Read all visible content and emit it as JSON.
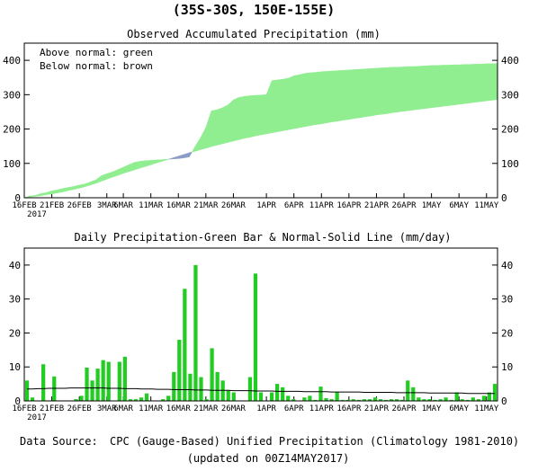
{
  "header": {
    "title": "(35S-30S, 150E-155E)"
  },
  "footer": {
    "source_label": "Data Source:",
    "source_text": "CPC (Gauge-Based) Unified Precipitation (Climatology 1981-2010)",
    "updated": "(updated on 00Z14MAY2017)"
  },
  "colors": {
    "above": "#90ee90",
    "below": "#8c9cc7",
    "bar": "#22cc22",
    "source_label": "#5a6ab5"
  },
  "chart_data": [
    {
      "type": "area",
      "title": "Observed Accumulated Precipitation (mm)",
      "legend": [
        "Above normal: green",
        "Below normal: brown"
      ],
      "legend_placement": "top-left",
      "ylim": [
        0,
        450
      ],
      "yticks": [
        0,
        100,
        200,
        300,
        400
      ],
      "xticks": [
        "16FEB",
        "21FEB",
        "26FEB",
        "3MAR",
        "6MAR",
        "11MAR",
        "16MAR",
        "21MAR",
        "26MAR",
        "1APR",
        "6APR",
        "11APR",
        "16APR",
        "21APR",
        "26APR",
        "1MAY",
        "6MAY",
        "11MAY"
      ],
      "xtick_year": "2017",
      "x_start": "2017-02-16",
      "x_end": "2017-05-13",
      "grid": false,
      "series": [
        {
          "name": "Observed",
          "values": [
            0,
            5,
            7,
            12,
            15,
            20,
            23,
            27,
            30,
            33,
            37,
            40,
            46,
            52,
            64,
            70,
            75,
            82,
            89,
            96,
            103,
            106,
            108,
            109,
            110,
            111,
            112,
            113,
            114,
            116,
            119,
            148,
            174,
            205,
            253,
            256,
            262,
            270,
            285,
            292,
            295,
            297,
            298,
            299,
            300,
            341,
            343,
            345,
            348,
            355,
            358,
            362,
            364,
            365,
            367,
            368,
            369,
            370,
            371,
            372,
            373,
            374,
            375,
            376,
            377,
            378,
            379,
            380,
            380,
            381,
            382,
            382,
            383,
            384,
            385,
            385,
            386,
            386,
            387,
            387,
            388,
            388,
            389,
            389,
            390,
            390,
            391
          ]
        },
        {
          "name": "Normal",
          "values": [
            0,
            2,
            4,
            6,
            9,
            11,
            14,
            17,
            21,
            24,
            28,
            32,
            37,
            42,
            48,
            54,
            60,
            65,
            71,
            76,
            81,
            86,
            91,
            96,
            101,
            106,
            111,
            116,
            121,
            126,
            131,
            135,
            140,
            144,
            149,
            153,
            157,
            161,
            165,
            169,
            173,
            176,
            180,
            183,
            186,
            189,
            192,
            195,
            198,
            201,
            204,
            207,
            210,
            213,
            215,
            218,
            221,
            223,
            226,
            228,
            231,
            233,
            236,
            238,
            241,
            243,
            245,
            248,
            250,
            252,
            254,
            256,
            258,
            260,
            262,
            264,
            266,
            268,
            270,
            272,
            274,
            276,
            278,
            280,
            282,
            284,
            286
          ]
        }
      ]
    },
    {
      "type": "bar",
      "title": "Daily Precipitation-Green Bar & Normal-Solid Line (mm/day)",
      "ylim": [
        0,
        45
      ],
      "yticks": [
        0,
        10,
        20,
        30,
        40
      ],
      "xticks": [
        "16FEB",
        "21FEB",
        "26FEB",
        "3MAR",
        "6MAR",
        "11MAR",
        "16MAR",
        "21MAR",
        "26MAR",
        "1APR",
        "6APR",
        "11APR",
        "16APR",
        "21APR",
        "26APR",
        "1MAY",
        "6MAY",
        "11MAY"
      ],
      "xtick_year": "2017",
      "x_start": "2017-02-16",
      "x_end": "2017-05-13",
      "grid": false,
      "series": [
        {
          "name": "Daily Precipitation",
          "values": [
            6,
            1,
            0,
            10.8,
            0,
            7.2,
            0,
            0,
            0,
            0.5,
            1.5,
            9.8,
            6,
            9.5,
            12,
            11.5,
            0,
            11.5,
            13,
            0.5,
            0.5,
            1,
            2.2,
            0,
            0,
            0.5,
            1.5,
            8.5,
            18,
            33,
            8,
            40,
            7,
            0.5,
            15.5,
            8.5,
            6,
            3,
            2.5,
            0,
            0,
            7,
            37.5,
            2.5,
            0,
            2.5,
            5,
            4,
            1.5,
            0.5,
            0,
            1,
            1.5,
            0.3,
            4.2,
            0.8,
            0.5,
            2.5,
            0.3,
            0.3,
            0.5,
            0.3,
            0.5,
            0.5,
            1,
            0.5,
            0.3,
            0.5,
            0.5,
            0.3,
            6,
            4,
            1,
            0.5,
            0.5,
            0.3,
            0.5,
            1,
            0.3,
            2.5,
            0.5,
            0.3,
            1,
            0.5,
            1.5,
            2.5,
            5
          ]
        },
        {
          "name": "Normal",
          "values": [
            3.5,
            3.5,
            3.6,
            3.6,
            3.7,
            3.7,
            3.7,
            3.7,
            3.8,
            3.8,
            3.8,
            3.8,
            3.8,
            3.8,
            3.8,
            3.7,
            3.7,
            3.7,
            3.6,
            3.6,
            3.6,
            3.5,
            3.5,
            3.5,
            3.4,
            3.4,
            3.4,
            3.3,
            3.3,
            3.3,
            3.3,
            3.2,
            3.2,
            3.2,
            3.1,
            3.1,
            3.1,
            3.1,
            3.0,
            3.0,
            3.0,
            3.0,
            2.9,
            2.9,
            2.9,
            2.9,
            2.8,
            2.8,
            2.8,
            2.8,
            2.8,
            2.7,
            2.7,
            2.7,
            2.7,
            2.7,
            2.6,
            2.6,
            2.6,
            2.6,
            2.6,
            2.6,
            2.5,
            2.5,
            2.5,
            2.5,
            2.5,
            2.5,
            2.4,
            2.4,
            2.4,
            2.4,
            2.4,
            2.4,
            2.3,
            2.3,
            2.3,
            2.3,
            2.3,
            2.3,
            2.3,
            2.2,
            2.2,
            2.2,
            2.2,
            2.2,
            2.2
          ]
        }
      ]
    }
  ]
}
